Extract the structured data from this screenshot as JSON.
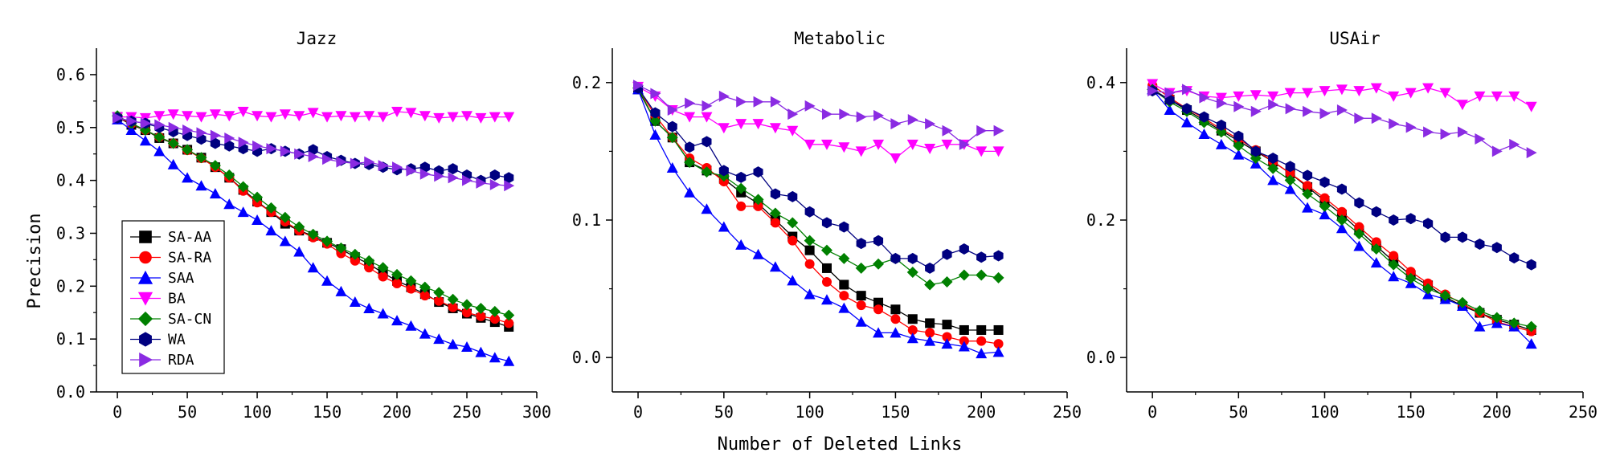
{
  "figure": {
    "xlabel": "Number of Deleted Links",
    "ylabel": "Precision"
  },
  "chart_data": [
    {
      "type": "line",
      "title": "Jazz",
      "xlim": [
        -15,
        300
      ],
      "ylim": [
        0.0,
        0.65
      ],
      "xticks": [
        0,
        50,
        100,
        150,
        200,
        250,
        300
      ],
      "yticks": [
        0.0,
        0.1,
        0.2,
        0.3,
        0.4,
        0.5,
        0.6
      ],
      "ytick_format": 1,
      "legend": "bottom-left",
      "x": [
        0,
        10,
        20,
        30,
        40,
        50,
        60,
        70,
        80,
        90,
        100,
        110,
        120,
        130,
        140,
        150,
        160,
        170,
        180,
        190,
        200,
        210,
        220,
        230,
        240,
        250,
        260,
        270,
        280
      ],
      "series": [
        {
          "name": "SA-AA",
          "color": "#000000",
          "marker": "square",
          "values": [
            0.52,
            0.505,
            0.495,
            0.48,
            0.47,
            0.458,
            0.443,
            0.425,
            0.405,
            0.382,
            0.36,
            0.34,
            0.318,
            0.305,
            0.295,
            0.282,
            0.27,
            0.255,
            0.242,
            0.225,
            0.21,
            0.198,
            0.185,
            0.17,
            0.158,
            0.148,
            0.14,
            0.132,
            0.123
          ]
        },
        {
          "name": "SA-RA",
          "color": "#ff0000",
          "marker": "circle",
          "values": [
            0.52,
            0.507,
            0.495,
            0.482,
            0.47,
            0.457,
            0.442,
            0.425,
            0.405,
            0.38,
            0.358,
            0.34,
            0.322,
            0.305,
            0.292,
            0.28,
            0.262,
            0.248,
            0.235,
            0.218,
            0.205,
            0.195,
            0.182,
            0.172,
            0.16,
            0.15,
            0.143,
            0.138,
            0.13
          ]
        },
        {
          "name": "SAA",
          "color": "#0000ff",
          "marker": "triangle-up",
          "values": [
            0.515,
            0.495,
            0.475,
            0.455,
            0.43,
            0.405,
            0.39,
            0.375,
            0.355,
            0.34,
            0.325,
            0.305,
            0.285,
            0.265,
            0.235,
            0.21,
            0.19,
            0.17,
            0.158,
            0.148,
            0.135,
            0.125,
            0.11,
            0.1,
            0.09,
            0.085,
            0.075,
            0.065,
            0.058
          ]
        },
        {
          "name": "BA",
          "color": "#ff00ff",
          "marker": "triangle-down",
          "values": [
            0.52,
            0.52,
            0.518,
            0.522,
            0.525,
            0.522,
            0.52,
            0.525,
            0.522,
            0.53,
            0.522,
            0.52,
            0.525,
            0.522,
            0.528,
            0.52,
            0.522,
            0.52,
            0.522,
            0.52,
            0.53,
            0.528,
            0.522,
            0.518,
            0.52,
            0.522,
            0.518,
            0.52,
            0.52
          ]
        },
        {
          "name": "SA-CN",
          "color": "#008000",
          "marker": "diamond",
          "values": [
            0.522,
            0.508,
            0.495,
            0.482,
            0.47,
            0.458,
            0.443,
            0.428,
            0.41,
            0.388,
            0.368,
            0.348,
            0.33,
            0.312,
            0.298,
            0.285,
            0.272,
            0.26,
            0.248,
            0.235,
            0.222,
            0.21,
            0.198,
            0.188,
            0.175,
            0.165,
            0.158,
            0.152,
            0.145
          ]
        },
        {
          "name": "WA",
          "color": "#000080",
          "marker": "hexagon",
          "values": [
            0.518,
            0.512,
            0.508,
            0.5,
            0.492,
            0.485,
            0.478,
            0.47,
            0.465,
            0.46,
            0.455,
            0.46,
            0.455,
            0.45,
            0.458,
            0.445,
            0.438,
            0.432,
            0.43,
            0.425,
            0.42,
            0.422,
            0.425,
            0.418,
            0.422,
            0.41,
            0.4,
            0.41,
            0.405
          ]
        },
        {
          "name": "RDA",
          "color": "#8a2be2",
          "marker": "triangle-right",
          "values": [
            0.518,
            0.512,
            0.508,
            0.505,
            0.5,
            0.495,
            0.49,
            0.485,
            0.48,
            0.472,
            0.465,
            0.46,
            0.455,
            0.45,
            0.445,
            0.44,
            0.435,
            0.432,
            0.435,
            0.428,
            0.425,
            0.418,
            0.412,
            0.408,
            0.405,
            0.4,
            0.395,
            0.392,
            0.39
          ]
        }
      ]
    },
    {
      "type": "line",
      "title": "Metabolic",
      "xlim": [
        -15,
        250
      ],
      "ylim": [
        -0.025,
        0.225
      ],
      "xticks": [
        0,
        50,
        100,
        150,
        200,
        250
      ],
      "yticks": [
        0.0,
        0.1,
        0.2
      ],
      "ytick_format": 1,
      "x": [
        0,
        10,
        20,
        30,
        40,
        50,
        60,
        70,
        80,
        90,
        100,
        110,
        120,
        130,
        140,
        150,
        160,
        170,
        180,
        190,
        200,
        210
      ],
      "series": [
        {
          "name": "SA-AA",
          "color": "#000000",
          "marker": "square",
          "values": [
            0.195,
            0.172,
            0.16,
            0.142,
            0.136,
            0.13,
            0.12,
            0.112,
            0.1,
            0.088,
            0.078,
            0.065,
            0.053,
            0.045,
            0.04,
            0.035,
            0.028,
            0.025,
            0.024,
            0.02,
            0.02,
            0.02
          ]
        },
        {
          "name": "SA-RA",
          "color": "#ff0000",
          "marker": "circle",
          "values": [
            0.196,
            0.176,
            0.16,
            0.145,
            0.138,
            0.128,
            0.11,
            0.11,
            0.098,
            0.085,
            0.068,
            0.055,
            0.045,
            0.038,
            0.035,
            0.028,
            0.02,
            0.018,
            0.015,
            0.012,
            0.012,
            0.01
          ]
        },
        {
          "name": "SAA",
          "color": "#0000ff",
          "marker": "triangle-up",
          "values": [
            0.195,
            0.162,
            0.138,
            0.12,
            0.108,
            0.095,
            0.082,
            0.075,
            0.066,
            0.056,
            0.046,
            0.042,
            0.036,
            0.026,
            0.018,
            0.018,
            0.014,
            0.012,
            0.01,
            0.008,
            0.003,
            0.004
          ]
        },
        {
          "name": "BA",
          "color": "#ff00ff",
          "marker": "triangle-down",
          "values": [
            0.197,
            0.19,
            0.18,
            0.175,
            0.175,
            0.167,
            0.17,
            0.17,
            0.167,
            0.165,
            0.155,
            0.155,
            0.153,
            0.15,
            0.155,
            0.145,
            0.155,
            0.152,
            0.155,
            0.155,
            0.15,
            0.15
          ]
        },
        {
          "name": "SA-CN",
          "color": "#008000",
          "marker": "diamond",
          "values": [
            0.196,
            0.172,
            0.16,
            0.142,
            0.135,
            0.132,
            0.123,
            0.115,
            0.105,
            0.098,
            0.085,
            0.078,
            0.072,
            0.065,
            0.068,
            0.072,
            0.062,
            0.053,
            0.055,
            0.06,
            0.06,
            0.058
          ]
        },
        {
          "name": "WA",
          "color": "#000080",
          "marker": "hexagon",
          "values": [
            0.196,
            0.178,
            0.168,
            0.153,
            0.157,
            0.136,
            0.131,
            0.135,
            0.119,
            0.117,
            0.106,
            0.098,
            0.095,
            0.083,
            0.085,
            0.072,
            0.072,
            0.065,
            0.075,
            0.079,
            0.073,
            0.074
          ]
        },
        {
          "name": "RDA",
          "color": "#8a2be2",
          "marker": "triangle-right",
          "values": [
            0.198,
            0.192,
            0.18,
            0.185,
            0.183,
            0.19,
            0.186,
            0.186,
            0.186,
            0.177,
            0.183,
            0.177,
            0.177,
            0.175,
            0.176,
            0.17,
            0.173,
            0.17,
            0.165,
            0.155,
            0.165,
            0.165
          ]
        }
      ]
    },
    {
      "type": "line",
      "title": "USAir",
      "xlim": [
        -15,
        250
      ],
      "ylim": [
        -0.05,
        0.45
      ],
      "xticks": [
        0,
        50,
        100,
        150,
        200,
        250
      ],
      "yticks": [
        0.0,
        0.2,
        0.4
      ],
      "ytick_format": 1,
      "x": [
        0,
        10,
        20,
        30,
        40,
        50,
        60,
        70,
        80,
        90,
        100,
        110,
        120,
        130,
        140,
        150,
        160,
        170,
        180,
        190,
        200,
        210,
        220
      ],
      "series": [
        {
          "name": "SA-AA",
          "color": "#000000",
          "marker": "square",
          "values": [
            0.39,
            0.375,
            0.36,
            0.345,
            0.33,
            0.315,
            0.3,
            0.285,
            0.268,
            0.248,
            0.228,
            0.208,
            0.185,
            0.162,
            0.14,
            0.12,
            0.105,
            0.088,
            0.075,
            0.065,
            0.055,
            0.048,
            0.04
          ]
        },
        {
          "name": "SA-RA",
          "color": "#ff0000",
          "marker": "circle",
          "values": [
            0.396,
            0.378,
            0.362,
            0.348,
            0.332,
            0.318,
            0.302,
            0.285,
            0.268,
            0.25,
            0.232,
            0.212,
            0.19,
            0.168,
            0.148,
            0.125,
            0.108,
            0.092,
            0.078,
            0.065,
            0.052,
            0.045,
            0.038
          ]
        },
        {
          "name": "SAA",
          "color": "#0000ff",
          "marker": "triangle-up",
          "values": [
            0.39,
            0.36,
            0.342,
            0.325,
            0.31,
            0.295,
            0.282,
            0.258,
            0.245,
            0.218,
            0.208,
            0.188,
            0.162,
            0.138,
            0.118,
            0.108,
            0.092,
            0.085,
            0.075,
            0.045,
            0.05,
            0.045,
            0.02
          ]
        },
        {
          "name": "BA",
          "color": "#ff00ff",
          "marker": "triangle-down",
          "values": [
            0.398,
            0.385,
            0.388,
            0.38,
            0.378,
            0.38,
            0.382,
            0.38,
            0.385,
            0.385,
            0.388,
            0.39,
            0.388,
            0.392,
            0.38,
            0.385,
            0.392,
            0.385,
            0.368,
            0.38,
            0.38,
            0.38,
            0.365
          ]
        },
        {
          "name": "SA-CN",
          "color": "#008000",
          "marker": "diamond",
          "values": [
            0.39,
            0.372,
            0.358,
            0.342,
            0.328,
            0.308,
            0.29,
            0.275,
            0.258,
            0.238,
            0.22,
            0.2,
            0.18,
            0.158,
            0.135,
            0.115,
            0.1,
            0.09,
            0.08,
            0.068,
            0.058,
            0.05,
            0.045
          ]
        },
        {
          "name": "WA",
          "color": "#000080",
          "marker": "hexagon",
          "values": [
            0.388,
            0.375,
            0.362,
            0.35,
            0.338,
            0.322,
            0.3,
            0.29,
            0.278,
            0.265,
            0.255,
            0.245,
            0.225,
            0.212,
            0.2,
            0.202,
            0.195,
            0.175,
            0.175,
            0.165,
            0.16,
            0.145,
            0.135
          ]
        },
        {
          "name": "RDA",
          "color": "#8a2be2",
          "marker": "triangle-right",
          "values": [
            0.388,
            0.385,
            0.39,
            0.378,
            0.37,
            0.365,
            0.358,
            0.368,
            0.362,
            0.358,
            0.355,
            0.36,
            0.348,
            0.348,
            0.34,
            0.335,
            0.328,
            0.325,
            0.328,
            0.318,
            0.3,
            0.31,
            0.298
          ]
        }
      ]
    }
  ]
}
